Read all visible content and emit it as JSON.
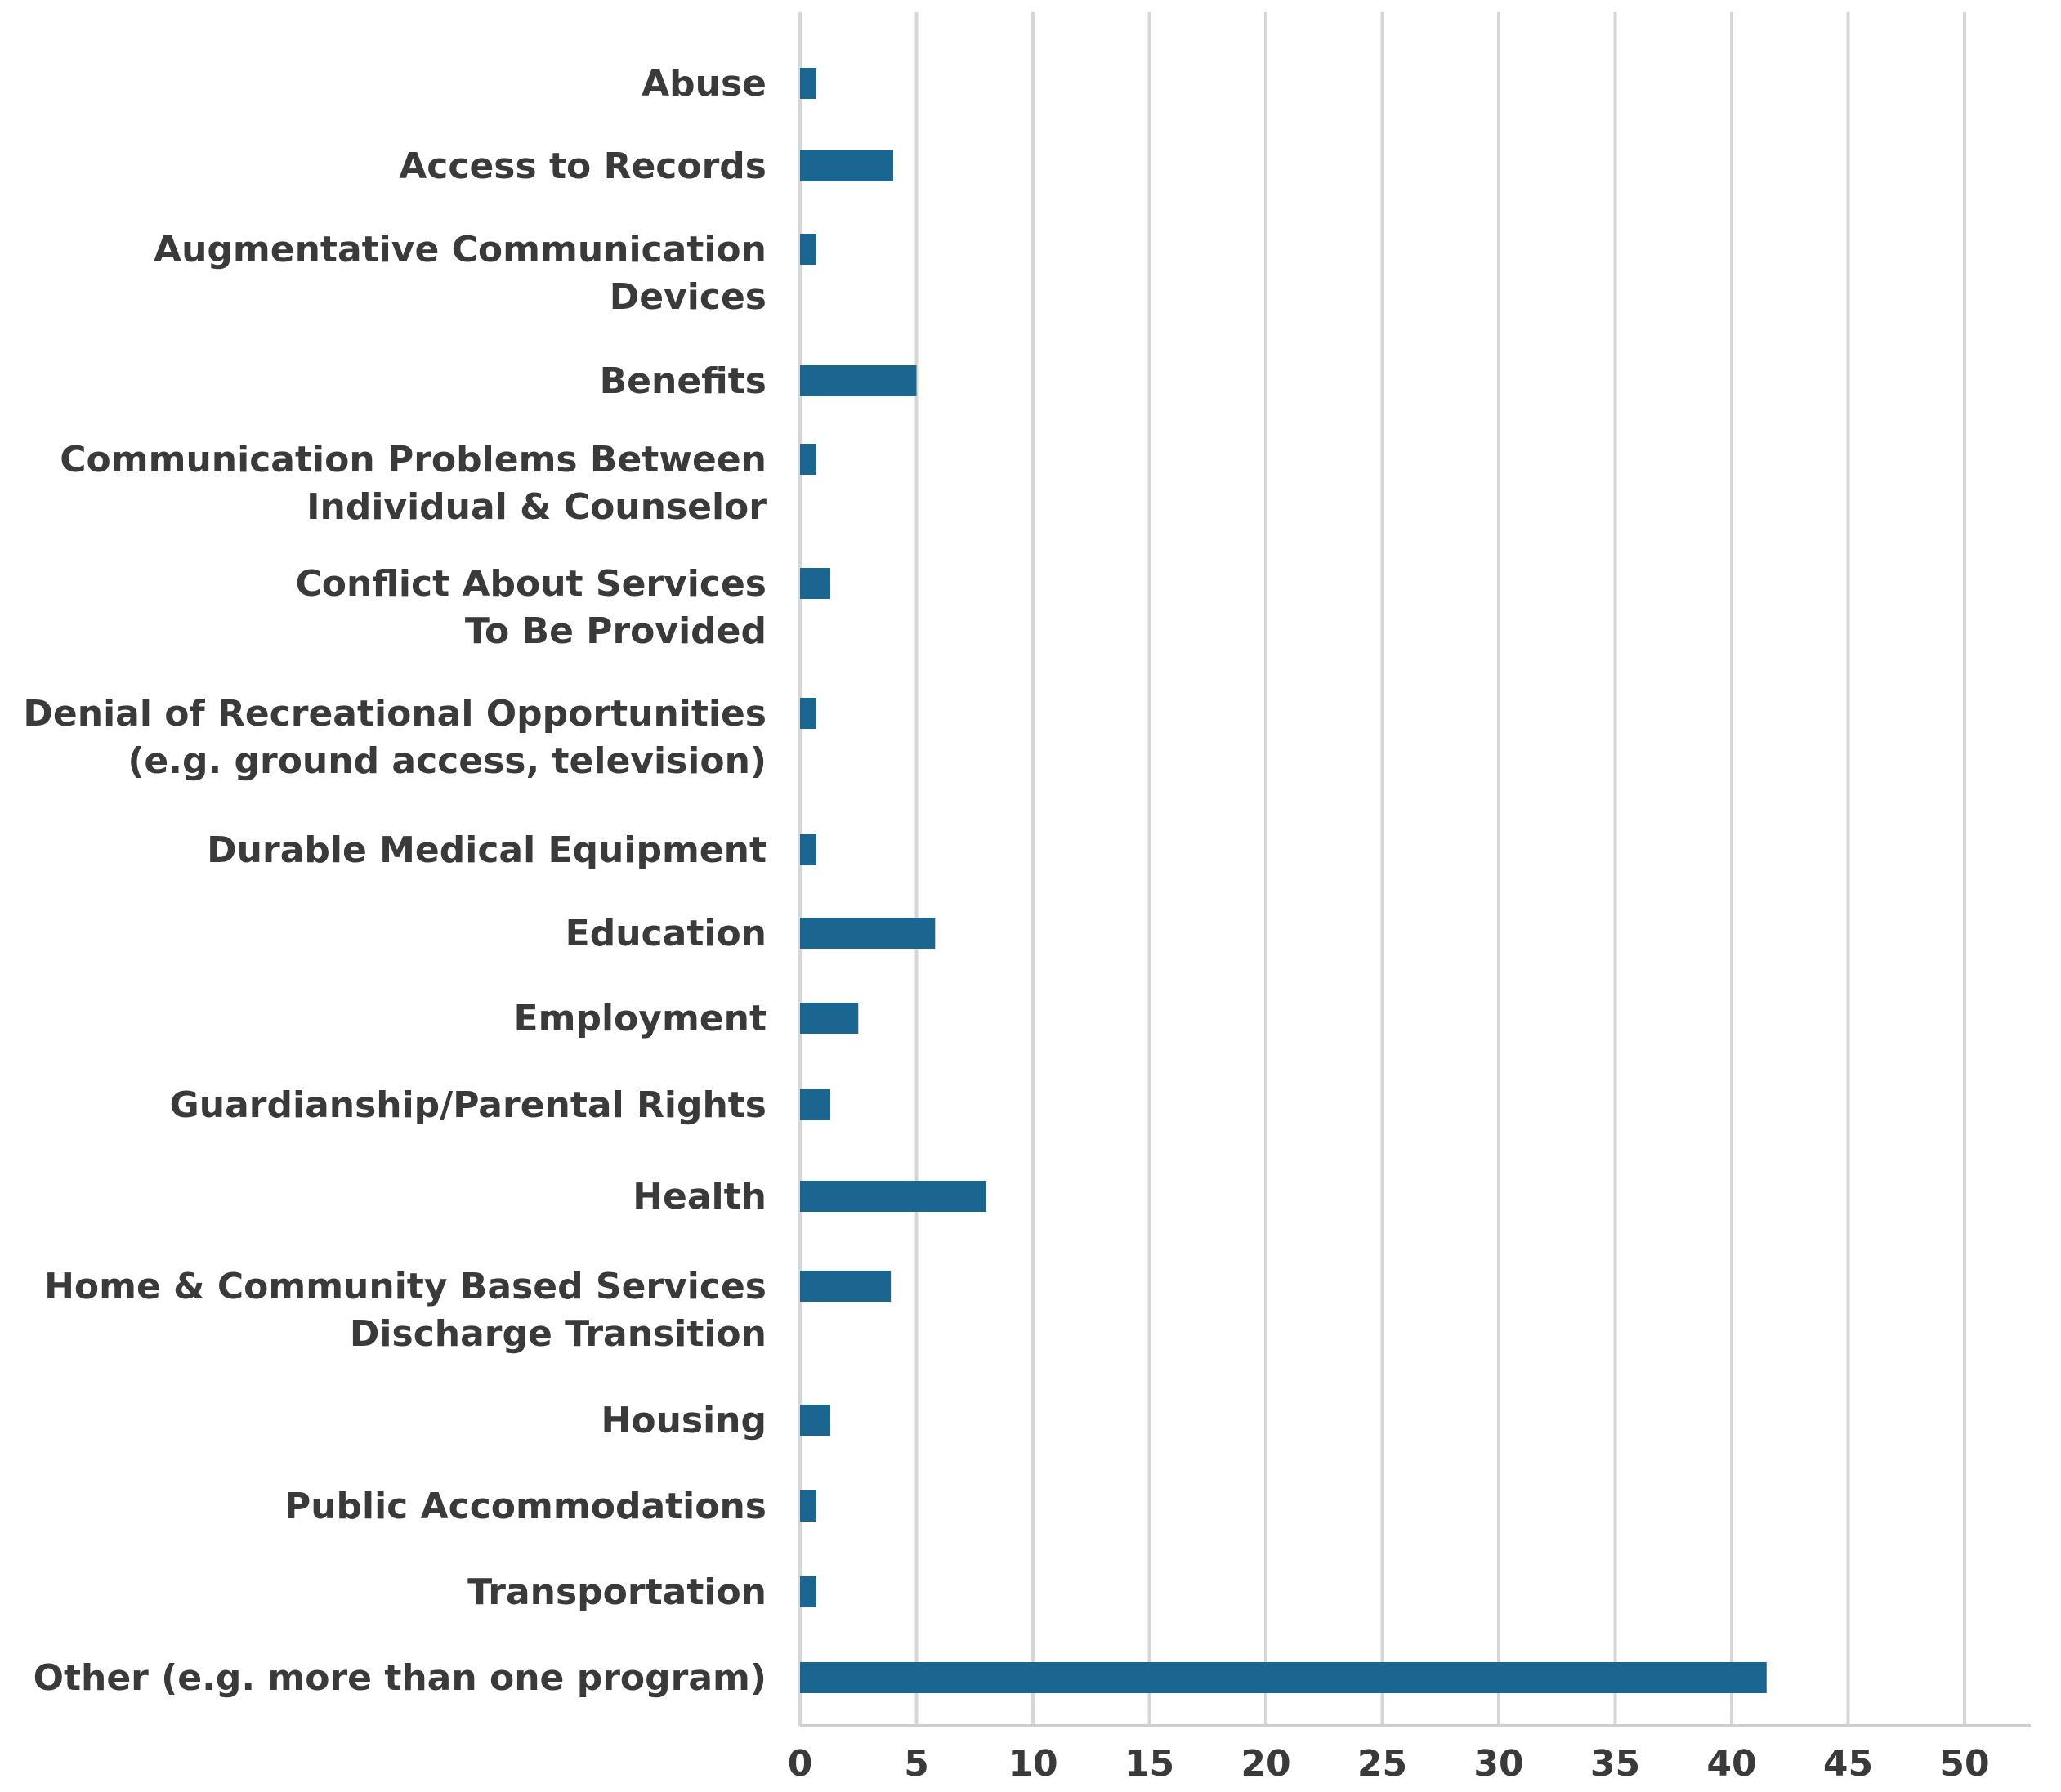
{
  "chart_data": {
    "type": "bar",
    "orientation": "horizontal",
    "title": "",
    "xlabel": "",
    "ylabel": "",
    "xlim": [
      0,
      52
    ],
    "x_ticks": [
      0,
      5,
      10,
      15,
      20,
      25,
      30,
      35,
      40,
      45,
      50
    ],
    "x_tick_labels": [
      "0",
      "5",
      "10",
      "15",
      "20",
      "25",
      "30",
      "35",
      "40",
      "45",
      "50"
    ],
    "grid": true,
    "bar_color": "#1a6690",
    "categories": [
      "Abuse",
      "Access to Records",
      "Augmentative Communication Devices",
      "Benefits",
      "Communication Problems Between Individual & Counselor",
      "Conflict About Services To Be Provided",
      "Denial of Recreational Opportunities (e.g. ground access, television)",
      "Durable Medical Equipment",
      "Education",
      "Employment",
      "Guardianship/Parental Rights",
      "Health",
      "Home & Community Based Services Discharge Transition",
      "Housing",
      "Public Accommodations",
      "Transportation",
      "Other (e.g. more than one program)"
    ],
    "category_label_lines": [
      [
        "Abuse"
      ],
      [
        "Access to Records"
      ],
      [
        "Augmentative Communication",
        "Devices"
      ],
      [
        "Benefits"
      ],
      [
        "Communication Problems Between",
        "Individual & Counselor"
      ],
      [
        "Conflict About Services",
        "To Be Provided"
      ],
      [
        "Denial of Recreational Opportunities",
        "(e.g. ground access, television)"
      ],
      [
        "Durable Medical Equipment"
      ],
      [
        "Education"
      ],
      [
        "Employment"
      ],
      [
        "Guardianship/Parental Rights"
      ],
      [
        "Health"
      ],
      [
        "Home & Community Based Services",
        "Discharge Transition"
      ],
      [
        "Housing"
      ],
      [
        "Public Accommodations"
      ],
      [
        "Transportation"
      ],
      [
        "Other (e.g. more than one program)"
      ]
    ],
    "values": [
      0.7,
      4,
      0.7,
      5,
      0.7,
      1.3,
      0.7,
      0.7,
      5.8,
      2.5,
      1.3,
      8,
      3.9,
      1.3,
      0.7,
      0.7,
      41.5
    ]
  }
}
